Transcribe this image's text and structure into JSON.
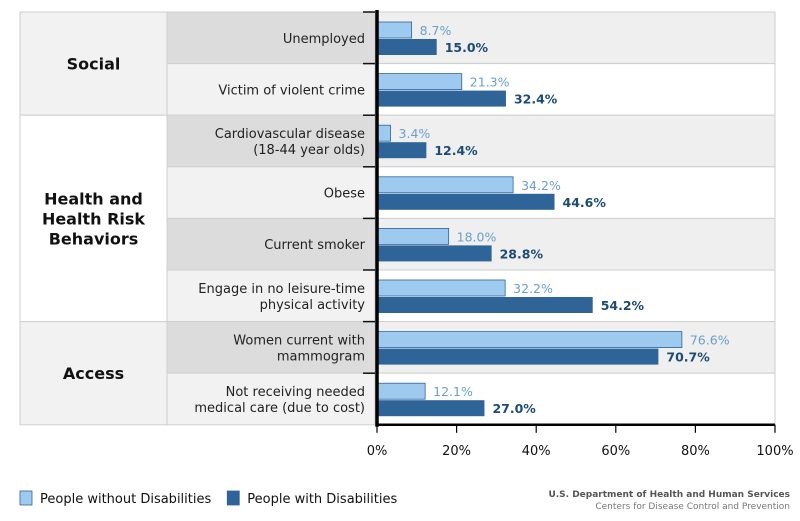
{
  "chart_data": {
    "type": "bar",
    "orientation": "horizontal",
    "groups": [
      {
        "name": "Social",
        "lines": [
          "Social"
        ],
        "rows": [
          0,
          1
        ]
      },
      {
        "name": "Health and Health Risk Behaviors",
        "lines": [
          "Health and",
          "Health Risk",
          "Behaviors"
        ],
        "rows": [
          2,
          3,
          4,
          5
        ]
      },
      {
        "name": "Access",
        "lines": [
          "Access"
        ],
        "rows": [
          6,
          7
        ]
      }
    ],
    "categories": [
      [
        "Unemployed"
      ],
      [
        "Victim of violent crime"
      ],
      [
        "Cardiovascular disease",
        "(18-44 year olds)"
      ],
      [
        "Obese"
      ],
      [
        "Current smoker"
      ],
      [
        "Engage in no leisure-time",
        "physical activity"
      ],
      [
        "Women current with",
        "mammogram"
      ],
      [
        "Not receiving needed",
        "medical care (due to cost)"
      ]
    ],
    "series": [
      {
        "name": "People without Disabilities",
        "color": "#9dcaee",
        "label_color": "#6a9fd0",
        "values": [
          8.7,
          21.3,
          3.4,
          34.2,
          18.0,
          32.2,
          76.6,
          12.1
        ],
        "labels": [
          "8.7%",
          "21.3%",
          "3.4%",
          "34.2%",
          "18.0%",
          "32.2%",
          "76.6%",
          "12.1%"
        ]
      },
      {
        "name": "People with Disabilities",
        "color": "#2f6499",
        "label_color": "#1d4b75",
        "values": [
          15.0,
          32.4,
          12.4,
          44.6,
          28.8,
          54.2,
          70.7,
          27.0
        ],
        "labels": [
          "15.0%",
          "32.4%",
          "12.4%",
          "44.6%",
          "28.8%",
          "54.2%",
          "70.7%",
          "27.0%"
        ]
      }
    ],
    "xlim": [
      0,
      100
    ],
    "x_ticks": [
      "0%",
      "20%",
      "40%",
      "60%",
      "80%",
      "100%"
    ],
    "legend_position": "bottom-left"
  },
  "source": {
    "line1": "U.S. Department of Health and Human Services",
    "line2": "Centers for Disease Control and Prevention"
  }
}
